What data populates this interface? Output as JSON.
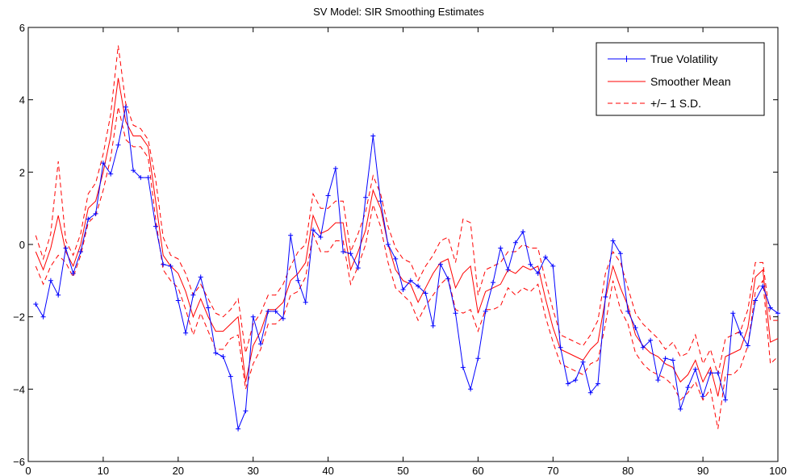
{
  "chart_data": {
    "type": "line",
    "title": "SV Model: SIR Smoothing Estimates",
    "xlabel": "",
    "ylabel": "",
    "xlim": [
      0,
      100
    ],
    "ylim": [
      -6,
      6
    ],
    "x_ticks": [
      0,
      10,
      20,
      30,
      40,
      50,
      60,
      70,
      80,
      90,
      100
    ],
    "y_ticks": [
      -6,
      -4,
      -2,
      0,
      2,
      4,
      6
    ],
    "legend_position": "top-right",
    "grid": false,
    "series": [
      {
        "name": "True Volatility",
        "color": "#0000ff",
        "style": "solid",
        "marker": "plus",
        "x_start": 1,
        "values": [
          -1.65,
          -2.0,
          -1.0,
          -1.4,
          -0.1,
          -0.8,
          -0.2,
          0.7,
          0.85,
          2.25,
          1.95,
          2.75,
          3.8,
          2.05,
          1.85,
          1.85,
          0.5,
          -0.55,
          -0.6,
          -1.55,
          -2.45,
          -1.4,
          -0.9,
          -1.75,
          -3.0,
          -3.1,
          -3.65,
          -5.1,
          -4.6,
          -2.0,
          -2.75,
          -1.85,
          -1.85,
          -2.05,
          0.25,
          -1.0,
          -1.6,
          0.4,
          0.2,
          1.35,
          2.1,
          -0.2,
          -0.25,
          -0.65,
          1.3,
          3.0,
          1.2,
          0.0,
          -0.4,
          -1.25,
          -1.0,
          -1.15,
          -1.35,
          -2.25,
          -0.55,
          -0.95,
          -1.9,
          -3.4,
          -4.0,
          -3.15,
          -1.85,
          -1.05,
          -0.1,
          -0.7,
          0.05,
          0.35,
          -0.55,
          -0.8,
          -0.35,
          -0.6,
          -2.85,
          -3.85,
          -3.75,
          -3.25,
          -4.1,
          -3.85,
          -1.45,
          0.1,
          -0.25,
          -1.85,
          -2.3,
          -2.85,
          -2.65,
          -3.75,
          -3.15,
          -3.2,
          -4.55,
          -3.95,
          -3.45,
          -4.2,
          -3.55,
          -3.55,
          -4.3,
          -1.9,
          -2.45,
          -2.8,
          -1.55,
          -1.15,
          -1.75,
          -1.9
        ]
      },
      {
        "name": "Smoother Mean",
        "color": "#ff0000",
        "style": "solid",
        "x_start": 1,
        "values": [
          -0.2,
          -0.7,
          -0.1,
          0.8,
          -0.2,
          -0.6,
          0.0,
          1.0,
          1.2,
          2.0,
          3.0,
          4.6,
          3.4,
          3.0,
          3.0,
          2.7,
          1.2,
          -0.3,
          -0.6,
          -0.8,
          -1.3,
          -2.0,
          -1.5,
          -2.0,
          -2.4,
          -2.4,
          -2.2,
          -2.0,
          -3.8,
          -2.8,
          -2.4,
          -1.8,
          -1.8,
          -1.6,
          -1.0,
          -0.8,
          -0.5,
          0.8,
          0.3,
          0.4,
          0.6,
          0.6,
          -0.7,
          -0.2,
          0.4,
          1.5,
          1.0,
          0.0,
          -0.7,
          -1.0,
          -1.1,
          -1.6,
          -1.2,
          -0.8,
          -0.5,
          -0.4,
          -1.2,
          -0.8,
          -0.6,
          -1.9,
          -1.3,
          -1.2,
          -1.1,
          -0.7,
          -0.8,
          -0.6,
          -0.7,
          -0.6,
          -1.5,
          -2.3,
          -2.9,
          -3.0,
          -3.1,
          -3.2,
          -2.9,
          -2.7,
          -1.5,
          -0.6,
          -1.2,
          -1.7,
          -2.5,
          -2.8,
          -3.0,
          -3.1,
          -3.3,
          -3.4,
          -3.8,
          -3.6,
          -3.2,
          -3.8,
          -3.4,
          -4.2,
          -3.1,
          -3.0,
          -2.9,
          -2.3,
          -0.9,
          -0.7,
          -2.7,
          -2.6
        ]
      },
      {
        "name": "+/− 1 S.D.",
        "color": "#ff0000",
        "style": "dashed",
        "x_start": 1,
        "values": [
          0.25,
          -0.4,
          0.3,
          2.3,
          0.1,
          -0.3,
          0.3,
          1.4,
          1.7,
          2.5,
          3.6,
          5.5,
          3.9,
          3.3,
          3.2,
          2.9,
          1.8,
          0.2,
          -0.3,
          -0.4,
          -0.8,
          -1.4,
          -1.1,
          -1.5,
          -1.9,
          -2.0,
          -1.8,
          -1.5,
          -3.0,
          -2.2,
          -1.9,
          -1.4,
          -1.4,
          -1.1,
          -0.6,
          -0.2,
          0.0,
          1.4,
          1.0,
          1.0,
          1.2,
          1.2,
          -0.2,
          0.3,
          0.9,
          1.9,
          1.4,
          0.5,
          -0.1,
          -0.4,
          -0.5,
          -1.0,
          -0.6,
          -0.3,
          0.1,
          0.2,
          -0.5,
          0.7,
          0.6,
          -1.4,
          -0.7,
          -0.6,
          -0.5,
          -0.2,
          -0.2,
          0.0,
          -0.1,
          -0.1,
          -1.0,
          -1.8,
          -2.5,
          -2.6,
          -2.7,
          -2.8,
          -2.5,
          -2.1,
          -0.8,
          -0.2,
          -0.5,
          -1.2,
          -1.9,
          -2.2,
          -2.4,
          -2.6,
          -2.9,
          -2.7,
          -3.1,
          -3.0,
          -2.5,
          -3.3,
          -2.9,
          -3.6,
          -2.6,
          -2.5,
          -2.4,
          -1.8,
          -0.5,
          -0.5,
          -2.1,
          -2.1
        ]
      },
      {
        "name": "",
        "color": "#ff0000",
        "style": "dashed",
        "x_start": 1,
        "values": [
          -0.6,
          -1.1,
          -0.6,
          -0.3,
          -0.5,
          -0.9,
          -0.3,
          0.6,
          0.8,
          1.5,
          2.4,
          3.8,
          2.9,
          2.7,
          2.7,
          2.4,
          0.7,
          -0.7,
          -1.0,
          -1.2,
          -1.8,
          -2.5,
          -1.9,
          -2.4,
          -2.9,
          -2.9,
          -2.6,
          -2.5,
          -4.0,
          -3.3,
          -2.9,
          -2.2,
          -2.2,
          -2.0,
          -1.4,
          -1.3,
          -0.9,
          0.3,
          -0.2,
          -0.2,
          0.1,
          0.1,
          -1.1,
          -0.6,
          0.0,
          1.1,
          0.5,
          -0.5,
          -1.2,
          -1.4,
          -1.6,
          -2.1,
          -1.7,
          -1.4,
          -1.1,
          -0.9,
          -1.8,
          -1.9,
          -1.8,
          -2.4,
          -1.8,
          -1.8,
          -1.7,
          -1.2,
          -1.4,
          -1.2,
          -1.3,
          -1.1,
          -2.0,
          -2.7,
          -3.3,
          -3.4,
          -3.5,
          -3.6,
          -3.3,
          -3.2,
          -2.2,
          -1.0,
          -1.8,
          -2.2,
          -3.0,
          -3.3,
          -3.5,
          -3.6,
          -3.7,
          -3.9,
          -4.3,
          -4.1,
          -3.8,
          -4.3,
          -4.0,
          -5.1,
          -3.6,
          -3.6,
          -3.4,
          -2.8,
          -1.3,
          -1.0,
          -3.3,
          -3.1
        ]
      }
    ]
  }
}
